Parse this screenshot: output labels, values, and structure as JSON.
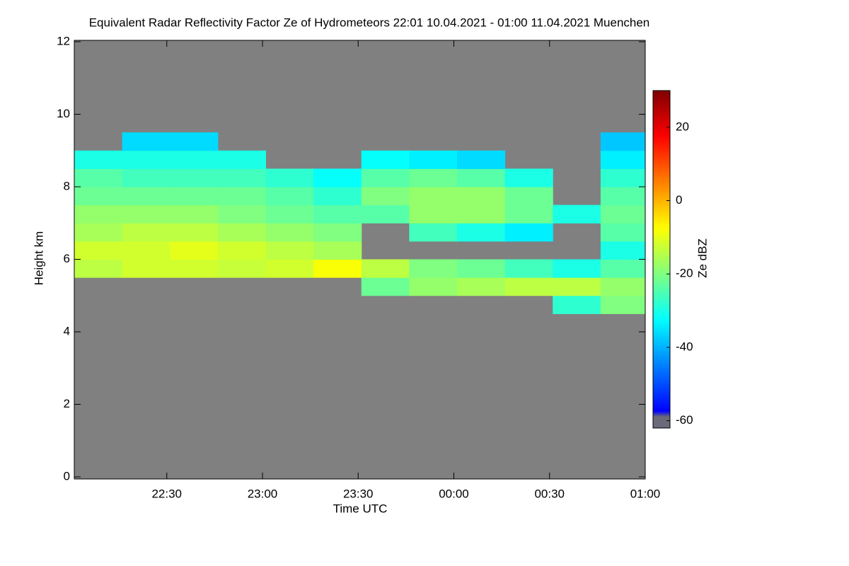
{
  "chart_data": {
    "type": "heatmap",
    "title": "Equivalent Radar Reflectivity Factor Ze of Hydrometeors   22:01 10.04.2021 - 01:00 11.04.2021 Muenchen",
    "x_label": "Time UTC",
    "y_label": "Height km",
    "colorbar_label": "Ze dBZ",
    "xlim": [
      1,
      180
    ],
    "xticks": [
      {
        "value": 30,
        "label": "22:30"
      },
      {
        "value": 60,
        "label": "23:00"
      },
      {
        "value": 90,
        "label": "23:30"
      },
      {
        "value": 120,
        "label": "00:00"
      },
      {
        "value": 150,
        "label": "00:30"
      },
      {
        "value": 180,
        "label": "01:00"
      }
    ],
    "ylim": [
      0,
      12
    ],
    "yticks": [
      0,
      2,
      4,
      6,
      8,
      10,
      12
    ],
    "clim": [
      -62,
      30
    ],
    "cticks": [
      -60,
      -40,
      -20,
      0,
      20
    ],
    "colormap": "jet",
    "background": "#808080",
    "x_bins": [
      1,
      16,
      31,
      46,
      61,
      76,
      91,
      106,
      121,
      136,
      151,
      166,
      180
    ],
    "y_bins": [
      4.5,
      5,
      5.5,
      6,
      6.5,
      7,
      7.5,
      8,
      8.5,
      9,
      9.5
    ],
    "z": [
      [
        null,
        null,
        null,
        null,
        null,
        null,
        null,
        null,
        null,
        null,
        -28,
        -20
      ],
      [
        null,
        null,
        null,
        null,
        null,
        null,
        -22,
        -18,
        -16,
        -14,
        -14,
        -18
      ],
      [
        -14,
        -12,
        -12,
        -13,
        -12,
        -8,
        -14,
        -20,
        -22,
        -26,
        -30,
        -24
      ],
      [
        -12,
        -12,
        -10,
        -12,
        -14,
        -16,
        null,
        null,
        null,
        null,
        null,
        -30
      ],
      [
        -16,
        -14,
        -14,
        -16,
        -18,
        -20,
        null,
        -26,
        -30,
        -34,
        null,
        -24
      ],
      [
        -18,
        -18,
        -18,
        -20,
        -22,
        -24,
        -24,
        -18,
        -18,
        -22,
        -30,
        -22
      ],
      [
        -22,
        -22,
        -22,
        -22,
        -24,
        -28,
        -20,
        -18,
        -18,
        -22,
        null,
        -24
      ],
      [
        -24,
        -26,
        -26,
        -26,
        -28,
        -32,
        -24,
        -22,
        -24,
        -30,
        null,
        -28
      ],
      [
        -30,
        -30,
        -30,
        -30,
        null,
        null,
        -32,
        -34,
        -36,
        null,
        null,
        -34
      ],
      [
        null,
        -36,
        -36,
        null,
        null,
        null,
        null,
        null,
        null,
        null,
        null,
        -38
      ]
    ]
  }
}
